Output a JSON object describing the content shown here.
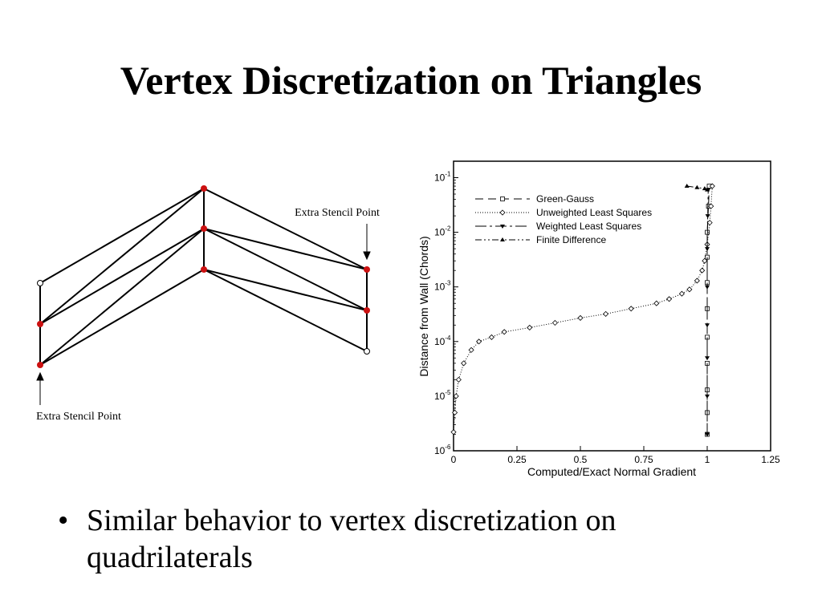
{
  "slide": {
    "title": "Vertex Discretization on Triangles",
    "bullet_symbol": "•",
    "bullet_text": "Similar behavior to vertex discretization on quadrilaterals"
  },
  "mesh_diagram": {
    "label_top": "Extra Stencil Point",
    "label_bottom": "Extra Stencil Point",
    "node_color": "#cc1111"
  },
  "chart_data": {
    "type": "line",
    "xlabel": "Computed/Exact Normal Gradient",
    "ylabel": "Distance from Wall (Chords)",
    "xlim": [
      0,
      1.25
    ],
    "ylim": [
      1e-06,
      0.2
    ],
    "yscale": "log",
    "xticks": [
      "0",
      "0.25",
      "0.5",
      "0.75",
      "1",
      "1.25"
    ],
    "xtick_values": [
      0,
      0.25,
      0.5,
      0.75,
      1,
      1.25
    ],
    "yticks": [
      {
        "base": "10",
        "exp": "-6",
        "value": 1e-06
      },
      {
        "base": "10",
        "exp": "-5",
        "value": 1e-05
      },
      {
        "base": "10",
        "exp": "-4",
        "value": 0.0001
      },
      {
        "base": "10",
        "exp": "-3",
        "value": 0.001
      },
      {
        "base": "10",
        "exp": "-2",
        "value": 0.01
      },
      {
        "base": "10",
        "exp": "-1",
        "value": 0.1
      }
    ],
    "grid": false,
    "legend_position": "top-left",
    "series": [
      {
        "name": "Green-Gauss",
        "dash": "10,6",
        "marker": "square",
        "points": [
          [
            1.0,
            2e-06
          ],
          [
            1.0,
            5e-06
          ],
          [
            1.0,
            1.3e-05
          ],
          [
            1.0,
            4e-05
          ],
          [
            1.0,
            0.00012
          ],
          [
            1.0,
            0.0004
          ],
          [
            1.0,
            0.0012
          ],
          [
            1.0,
            0.0035
          ],
          [
            1.0,
            0.01
          ],
          [
            1.005,
            0.03
          ],
          [
            1.008,
            0.07
          ]
        ]
      },
      {
        "name": "Unweighted Least Squares",
        "dash": "1,2",
        "marker": "diamond",
        "points": [
          [
            0.0,
            2.2e-06
          ],
          [
            0.005,
            5e-06
          ],
          [
            0.01,
            1e-05
          ],
          [
            0.02,
            2e-05
          ],
          [
            0.04,
            4e-05
          ],
          [
            0.07,
            7e-05
          ],
          [
            0.1,
            0.0001
          ],
          [
            0.15,
            0.00012
          ],
          [
            0.2,
            0.00015
          ],
          [
            0.3,
            0.00018
          ],
          [
            0.4,
            0.00022
          ],
          [
            0.5,
            0.00027
          ],
          [
            0.6,
            0.00032
          ],
          [
            0.7,
            0.0004
          ],
          [
            0.8,
            0.0005
          ],
          [
            0.85,
            0.0006
          ],
          [
            0.9,
            0.00075
          ],
          [
            0.93,
            0.0009
          ],
          [
            0.96,
            0.0013
          ],
          [
            0.98,
            0.002
          ],
          [
            0.99,
            0.003
          ],
          [
            1.0,
            0.006
          ],
          [
            1.01,
            0.015
          ],
          [
            1.015,
            0.03
          ],
          [
            1.02,
            0.07
          ]
        ]
      },
      {
        "name": "Weighted Least Squares",
        "dash": "14,4,3,4",
        "marker": "triangle-down",
        "points": [
          [
            1.0,
            2e-06
          ],
          [
            1.0,
            1e-05
          ],
          [
            1.0,
            5e-05
          ],
          [
            1.0,
            0.0002
          ],
          [
            1.0,
            0.001
          ],
          [
            1.0,
            0.005
          ],
          [
            1.002,
            0.02
          ],
          [
            1.004,
            0.06
          ]
        ]
      },
      {
        "name": "Finite Difference",
        "dash": "8,3,2,3,2,3",
        "marker": "triangle-up",
        "points": [
          [
            0.92,
            0.07
          ],
          [
            0.96,
            0.066
          ],
          [
            0.99,
            0.063
          ],
          [
            1.0,
            0.06
          ]
        ]
      }
    ]
  }
}
